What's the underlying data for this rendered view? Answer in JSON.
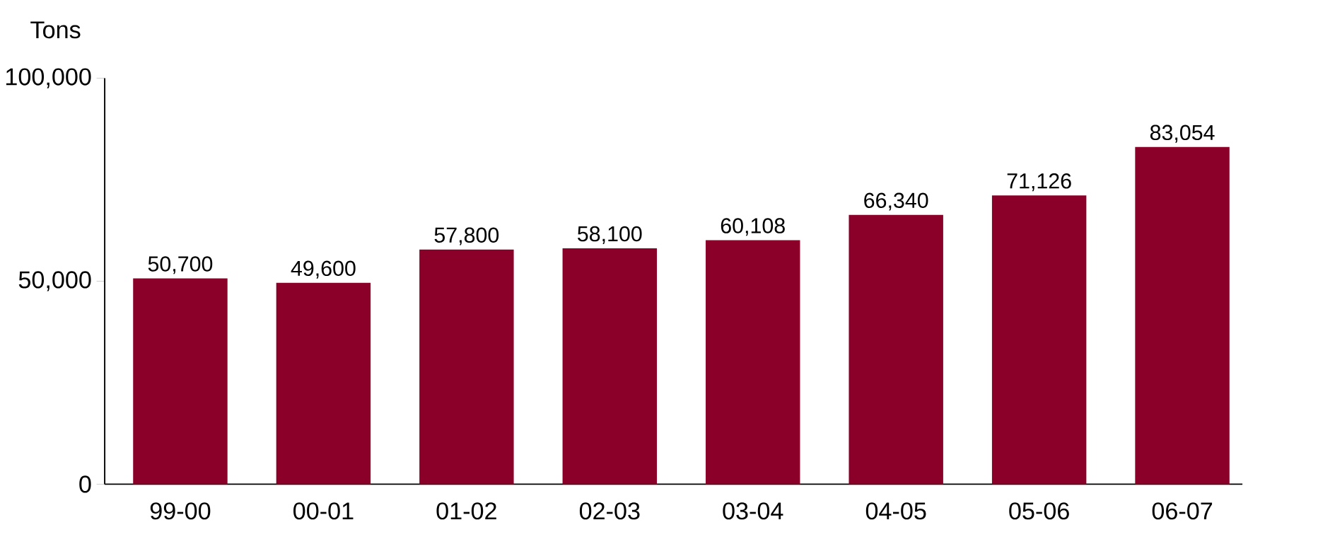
{
  "chart_data": {
    "type": "bar",
    "ylabel": "Tons",
    "categories": [
      "99-00",
      "00-01",
      "01-02",
      "02-03",
      "03-04",
      "04-05",
      "05-06",
      "06-07"
    ],
    "values": [
      50700,
      49600,
      57800,
      58100,
      60108,
      66340,
      71126,
      83054
    ],
    "value_labels": [
      "50,700",
      "49,600",
      "57,800",
      "58,100",
      "60,108",
      "66,340",
      "71,126",
      "83,054"
    ],
    "color": "#8b0029",
    "ylim": [
      0,
      100000
    ],
    "yticks": [
      0,
      {
        "value": 50000,
        "label": "50,000"
      },
      {
        "value": 100000,
        "label": "100,000"
      }
    ]
  }
}
